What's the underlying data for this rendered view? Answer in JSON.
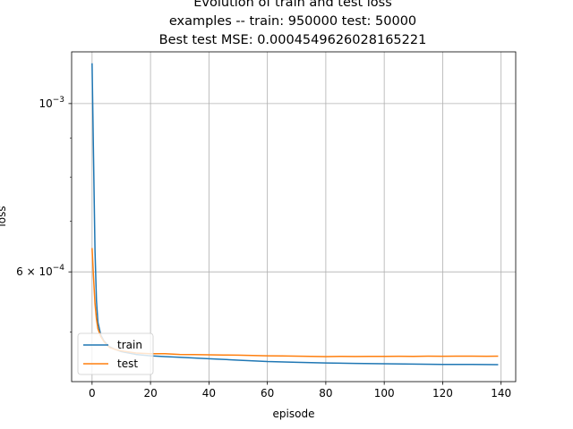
{
  "chart_data": {
    "type": "line",
    "title": "Evolution of train and test loss",
    "subtitle": "examples -- train: 950000 test: 50000",
    "subtitle2": "Best test MSE: 0.0004549626028165221",
    "xlabel": "episode",
    "ylabel": "loss",
    "xlim": [
      -7,
      145
    ],
    "ylim": [
      0.00043,
      0.00117
    ],
    "yscale": "log",
    "grid": true,
    "legend_position": "lower-left",
    "x_ticks": [
      "0",
      "20",
      "40",
      "60",
      "80",
      "100",
      "120",
      "140"
    ],
    "x_tick_values": [
      0,
      20,
      40,
      60,
      80,
      100,
      120,
      140
    ],
    "y_ticks": [
      {
        "label": "10",
        "exponent": "−3",
        "value": 0.001
      },
      {
        "label": "6 × 10",
        "exponent": "−4",
        "value": 0.0006
      }
    ],
    "series": [
      {
        "name": "train",
        "color": "#1f77b4",
        "x": [
          0,
          0.5,
          1,
          1.5,
          2,
          3,
          4,
          5,
          6,
          8,
          10,
          15,
          20,
          25,
          30,
          40,
          50,
          60,
          70,
          80,
          90,
          100,
          110,
          120,
          130,
          139
        ],
        "y": [
          0.00113,
          0.00085,
          0.00064,
          0.00055,
          0.000515,
          0.000495,
          0.000487,
          0.000482,
          0.000478,
          0.000474,
          0.000471,
          0.000467,
          0.000465,
          0.000464,
          0.000463,
          0.000461,
          0.000459,
          0.000457,
          0.000456,
          0.000455,
          0.0004545,
          0.000454,
          0.0004535,
          0.000453,
          0.000453,
          0.0004528
        ]
      },
      {
        "name": "test",
        "color": "#ff7f0e",
        "x": [
          0,
          0.5,
          1,
          1.5,
          2,
          3,
          4,
          5,
          6,
          8,
          10,
          15,
          20,
          25,
          30,
          35,
          40,
          45,
          50,
          55,
          60,
          65,
          70,
          75,
          80,
          85,
          90,
          95,
          100,
          105,
          110,
          115,
          120,
          125,
          130,
          135,
          139
        ],
        "y": [
          0.000645,
          0.00059,
          0.000545,
          0.00052,
          0.000505,
          0.000493,
          0.000486,
          0.000481,
          0.000477,
          0.000474,
          0.000472,
          0.000469,
          0.000468,
          0.000468,
          0.000467,
          0.0004668,
          0.0004665,
          0.0004662,
          0.000466,
          0.0004655,
          0.000465,
          0.0004648,
          0.0004645,
          0.0004642,
          0.000464,
          0.0004642,
          0.0004641,
          0.0004643,
          0.0004642,
          0.0004644,
          0.0004643,
          0.0004645,
          0.0004644,
          0.0004646,
          0.0004645,
          0.0004644,
          0.0004645
        ]
      }
    ]
  }
}
